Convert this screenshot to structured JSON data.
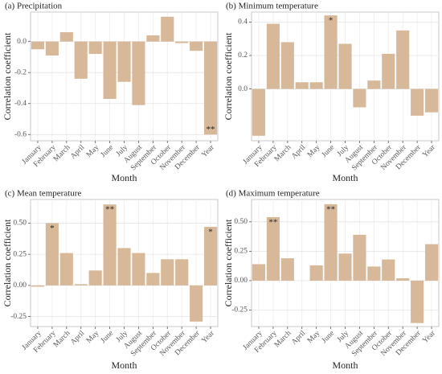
{
  "chart_data": [
    {
      "type": "bar",
      "title": "(a) Precipitation",
      "xlabel": "Month",
      "ylabel": "Correlation coefficient",
      "categories": [
        "January",
        "February",
        "March",
        "April",
        "May",
        "June",
        "July",
        "August",
        "September",
        "October",
        "November",
        "December",
        "Year"
      ],
      "values": [
        -0.05,
        -0.09,
        0.06,
        -0.24,
        -0.08,
        -0.37,
        -0.26,
        -0.41,
        0.04,
        0.16,
        -0.01,
        -0.06,
        -0.6
      ],
      "significance": [
        null,
        null,
        null,
        null,
        null,
        null,
        null,
        null,
        null,
        null,
        null,
        null,
        "**"
      ],
      "color": "#d7b898",
      "ylim": [
        -0.64,
        0.19
      ],
      "yticks": [
        {
          "value": 0,
          "label": "0.0"
        },
        -0.2,
        -0.4,
        -0.6
      ],
      "grid": true
    },
    {
      "type": "bar",
      "title": "(b) Minimum temperature",
      "xlabel": "Month",
      "ylabel": "Correlation coefficient",
      "categories": [
        "January",
        "February",
        "March",
        "April",
        "May",
        "June",
        "July",
        "August",
        "September",
        "October",
        "November",
        "December",
        "Year"
      ],
      "values": [
        -0.28,
        0.39,
        0.28,
        0.04,
        0.04,
        0.44,
        0.27,
        -0.11,
        0.05,
        0.21,
        0.35,
        -0.16,
        -0.14
      ],
      "significance": [
        null,
        null,
        null,
        null,
        null,
        "*",
        null,
        null,
        null,
        null,
        null,
        null,
        null
      ],
      "color": "#d7b898",
      "ylim": [
        -0.31,
        0.46
      ],
      "yticks": [
        0.4,
        0.2,
        {
          "value": 0,
          "label": "0.0"
        }
      ],
      "grid": true
    },
    {
      "type": "bar",
      "title": "(c) Mean temperature",
      "xlabel": "Month",
      "ylabel": "Correlation coefficient",
      "categories": [
        "January",
        "February",
        "March",
        "April",
        "May",
        "June",
        "July",
        "August",
        "September",
        "October",
        "November",
        "December",
        "Year"
      ],
      "values": [
        -0.01,
        0.5,
        0.26,
        0.01,
        0.12,
        0.65,
        0.3,
        0.26,
        0.1,
        0.21,
        0.21,
        -0.29,
        0.47
      ],
      "significance": [
        null,
        "*",
        null,
        null,
        null,
        "**",
        null,
        null,
        null,
        null,
        null,
        null,
        "*"
      ],
      "color": "#d7b898",
      "ylim": [
        -0.33,
        0.69
      ],
      "yticks": [
        {
          "value": 0.5,
          "label": "0.50"
        },
        0.25,
        {
          "value": 0,
          "label": "0.00"
        },
        -0.25
      ],
      "grid": true
    },
    {
      "type": "bar",
      "title": "(d) Maximum temperature",
      "xlabel": "Month",
      "ylabel": "Correlation coefficient",
      "categories": [
        "January",
        "February",
        "March",
        "April",
        "May",
        "June",
        "July",
        "August",
        "September",
        "October",
        "November",
        "December",
        "Year"
      ],
      "values": [
        0.14,
        0.54,
        0.19,
        0.0,
        0.13,
        0.65,
        0.23,
        0.39,
        0.12,
        0.18,
        0.02,
        -0.36,
        0.31
      ],
      "significance": [
        null,
        "**",
        null,
        null,
        null,
        "**",
        null,
        null,
        null,
        null,
        null,
        null,
        null
      ],
      "color": "#d7b898",
      "ylim": [
        -0.39,
        0.69
      ],
      "yticks": [
        {
          "value": 0.5,
          "label": "0.50"
        },
        0.25,
        {
          "value": 0,
          "label": "0.00"
        },
        -0.25
      ],
      "grid": true
    }
  ]
}
